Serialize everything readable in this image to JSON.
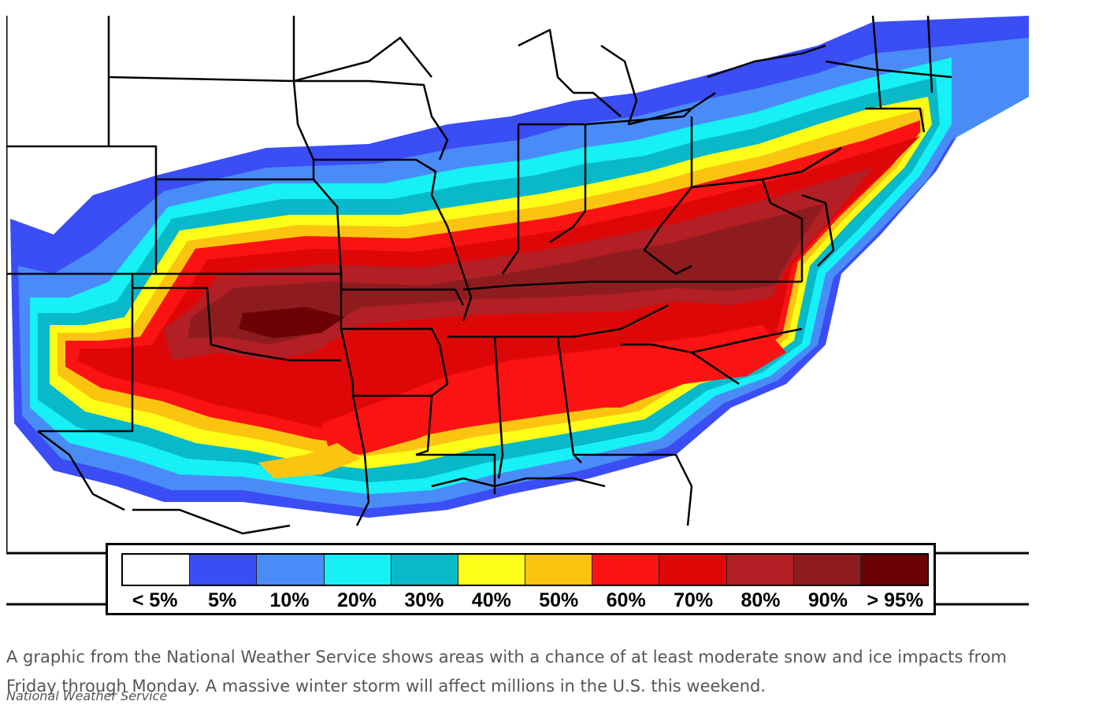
{
  "legend": {
    "items": [
      {
        "label": "< 5%",
        "color": "#ffffff"
      },
      {
        "label": "5%",
        "color": "#3b4df5"
      },
      {
        "label": "10%",
        "color": "#4a8cf7"
      },
      {
        "label": "20%",
        "color": "#16f0f6"
      },
      {
        "label": "30%",
        "color": "#08b9c9"
      },
      {
        "label": "40%",
        "color": "#fdfd17"
      },
      {
        "label": "50%",
        "color": "#fbc411"
      },
      {
        "label": "60%",
        "color": "#fb1313"
      },
      {
        "label": "70%",
        "color": "#de0708"
      },
      {
        "label": "80%",
        "color": "#b21f24"
      },
      {
        "label": "90%",
        "color": "#8e1c1f"
      },
      {
        "label": "> 95%",
        "color": "#6b0206"
      }
    ]
  },
  "caption": {
    "text": "A graphic from the National Weather Service shows areas with a chance of at least moderate snow and ice impacts from Friday through Monday. A massive winter storm will affect millions in the U.S. this weekend.",
    "credit": "National Weather Service"
  }
}
